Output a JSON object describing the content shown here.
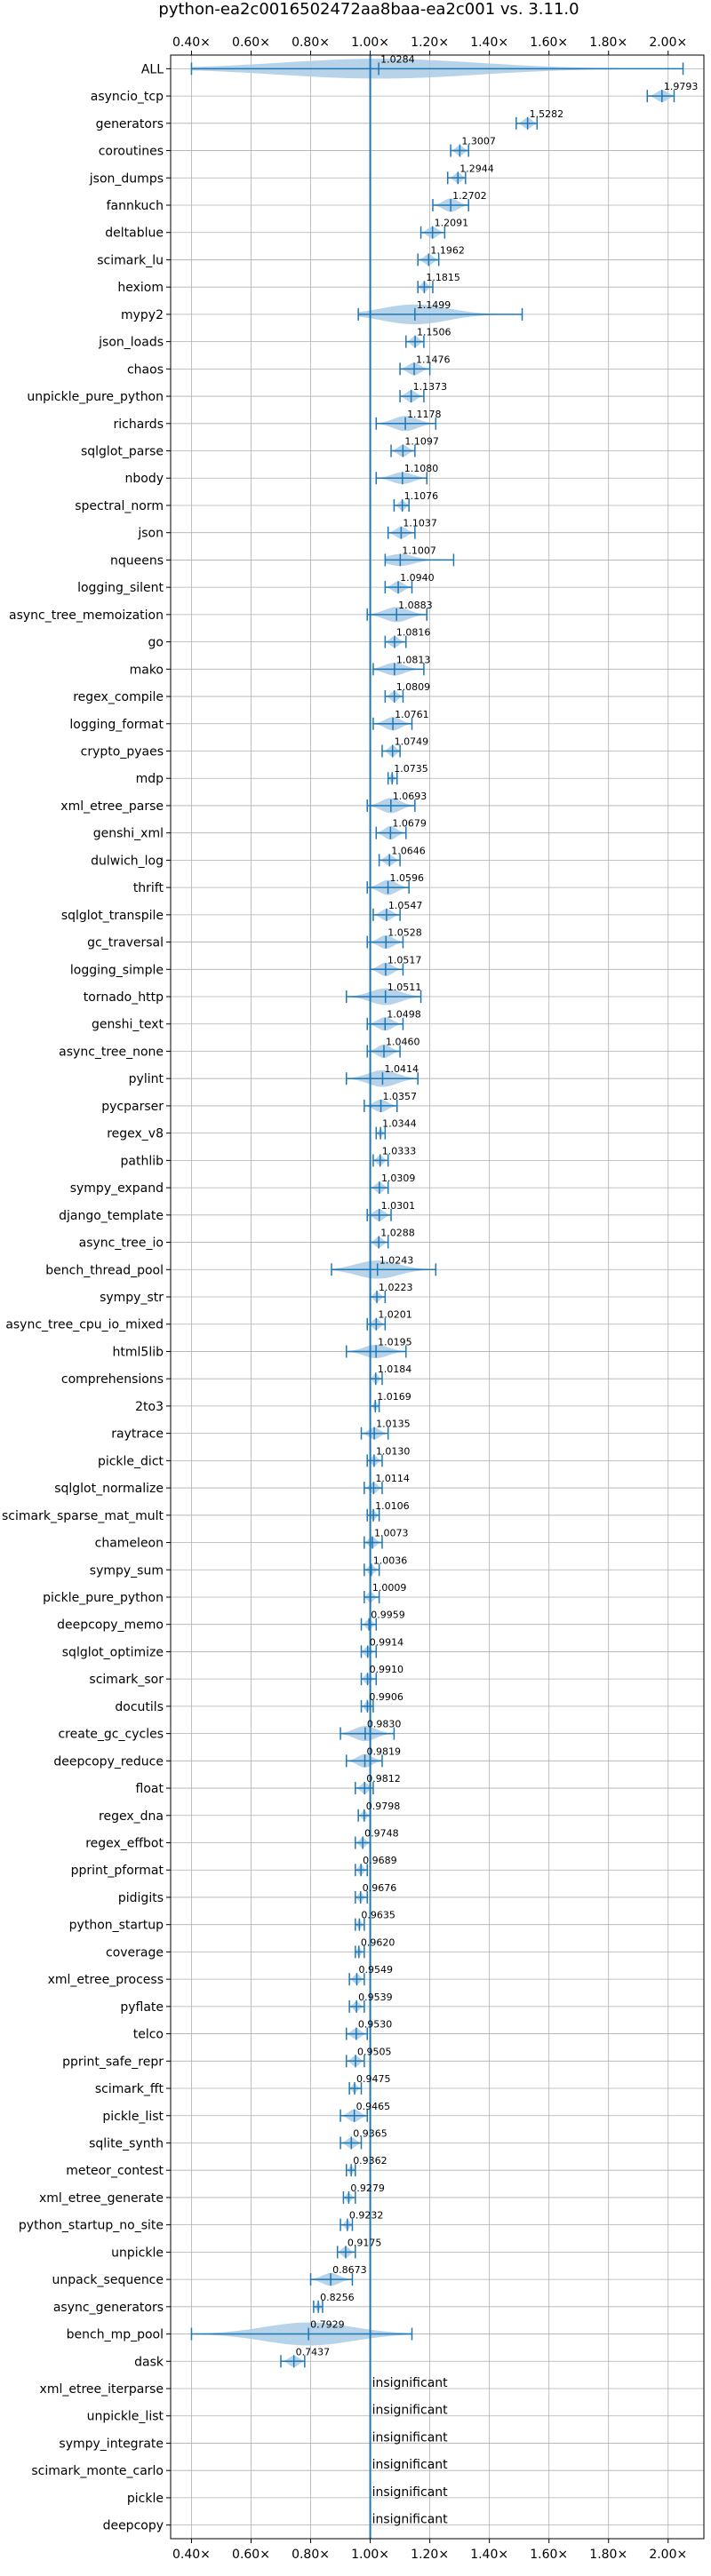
{
  "chart_data": {
    "type": "violin",
    "title": "python-ea2c0016502472aa8baa-ea2c001 vs. 3.11.0",
    "xlabel": "",
    "ylabel": "",
    "xlim": [
      0.33,
      2.12
    ],
    "xticks": [
      0.4,
      0.6,
      0.8,
      1.0,
      1.2,
      1.4,
      1.6,
      1.8,
      2.0
    ],
    "xtick_labels": [
      "0.40×",
      "0.60×",
      "0.80×",
      "1.00×",
      "1.20×",
      "1.40×",
      "1.60×",
      "1.80×",
      "2.00×"
    ],
    "reference_line": 1.0,
    "grid": true,
    "ticks_top_and_bottom": true,
    "colors": {
      "violin": "#aacbe6",
      "errorbar": "#1f77b4",
      "refline": "#1f77b4",
      "grid": "#b0b0b0"
    },
    "insignificant_text": "insignificant",
    "benchmarks": [
      {
        "name": "ALL",
        "mean": 1.0284,
        "min": 0.4,
        "max": 2.05,
        "label": "1.0284",
        "spread": 0.08
      },
      {
        "name": "asyncio_tcp",
        "mean": 1.9793,
        "min": 1.93,
        "max": 2.02,
        "label": "1.9793",
        "spread": 0.03
      },
      {
        "name": "generators",
        "mean": 1.5282,
        "min": 1.49,
        "max": 1.56,
        "label": "1.5282",
        "spread": 0.025
      },
      {
        "name": "coroutines",
        "mean": 1.3007,
        "min": 1.27,
        "max": 1.33,
        "label": "1.3007",
        "spread": 0.02
      },
      {
        "name": "json_dumps",
        "mean": 1.2944,
        "min": 1.26,
        "max": 1.32,
        "label": "1.2944",
        "spread": 0.02
      },
      {
        "name": "fannkuch",
        "mean": 1.2702,
        "min": 1.21,
        "max": 1.33,
        "label": "1.2702",
        "spread": 0.04
      },
      {
        "name": "deltablue",
        "mean": 1.2091,
        "min": 1.17,
        "max": 1.25,
        "label": "1.2091",
        "spread": 0.03
      },
      {
        "name": "scimark_lu",
        "mean": 1.1962,
        "min": 1.16,
        "max": 1.23,
        "label": "1.1962",
        "spread": 0.025
      },
      {
        "name": "hexiom",
        "mean": 1.1815,
        "min": 1.16,
        "max": 1.21,
        "label": "1.1815",
        "spread": 0.02
      },
      {
        "name": "mypy2",
        "mean": 1.1499,
        "min": 0.96,
        "max": 1.51,
        "label": "1.1499",
        "spread": 0.08
      },
      {
        "name": "json_loads",
        "mean": 1.1506,
        "min": 1.12,
        "max": 1.18,
        "label": "1.1506",
        "spread": 0.025
      },
      {
        "name": "chaos",
        "mean": 1.1476,
        "min": 1.1,
        "max": 1.2,
        "label": "1.1476",
        "spread": 0.035
      },
      {
        "name": "unpickle_pure_python",
        "mean": 1.1373,
        "min": 1.1,
        "max": 1.18,
        "label": "1.1373",
        "spread": 0.03
      },
      {
        "name": "richards",
        "mean": 1.1178,
        "min": 1.02,
        "max": 1.22,
        "label": "1.1178",
        "spread": 0.05
      },
      {
        "name": "sqlglot_parse",
        "mean": 1.1097,
        "min": 1.07,
        "max": 1.15,
        "label": "1.1097",
        "spread": 0.03
      },
      {
        "name": "nbody",
        "mean": 1.108,
        "min": 1.02,
        "max": 1.19,
        "label": "1.1080",
        "spread": 0.03
      },
      {
        "name": "spectral_norm",
        "mean": 1.1076,
        "min": 1.08,
        "max": 1.13,
        "label": "1.1076",
        "spread": 0.02
      },
      {
        "name": "json",
        "mean": 1.1037,
        "min": 1.06,
        "max": 1.15,
        "label": "1.1037",
        "spread": 0.03
      },
      {
        "name": "nqueens",
        "mean": 1.1007,
        "min": 1.05,
        "max": 1.28,
        "label": "1.1007",
        "spread": 0.03
      },
      {
        "name": "logging_silent",
        "mean": 1.094,
        "min": 1.05,
        "max": 1.14,
        "label": "1.0940",
        "spread": 0.03
      },
      {
        "name": "async_tree_memoization",
        "mean": 1.0883,
        "min": 0.99,
        "max": 1.19,
        "label": "1.0883",
        "spread": 0.05
      },
      {
        "name": "go",
        "mean": 1.0816,
        "min": 1.05,
        "max": 1.12,
        "label": "1.0816",
        "spread": 0.025
      },
      {
        "name": "mako",
        "mean": 1.0813,
        "min": 1.01,
        "max": 1.18,
        "label": "1.0813",
        "spread": 0.035
      },
      {
        "name": "regex_compile",
        "mean": 1.0809,
        "min": 1.05,
        "max": 1.11,
        "label": "1.0809",
        "spread": 0.025
      },
      {
        "name": "logging_format",
        "mean": 1.0761,
        "min": 1.01,
        "max": 1.14,
        "label": "1.0761",
        "spread": 0.04
      },
      {
        "name": "crypto_pyaes",
        "mean": 1.0749,
        "min": 1.04,
        "max": 1.1,
        "label": "1.0749",
        "spread": 0.025
      },
      {
        "name": "mdp",
        "mean": 1.0735,
        "min": 1.06,
        "max": 1.09,
        "label": "1.0735",
        "spread": 0.015
      },
      {
        "name": "xml_etree_parse",
        "mean": 1.0693,
        "min": 0.99,
        "max": 1.15,
        "label": "1.0693",
        "spread": 0.05
      },
      {
        "name": "genshi_xml",
        "mean": 1.0679,
        "min": 1.02,
        "max": 1.12,
        "label": "1.0679",
        "spread": 0.04
      },
      {
        "name": "dulwich_log",
        "mean": 1.0646,
        "min": 1.03,
        "max": 1.1,
        "label": "1.0646",
        "spread": 0.025
      },
      {
        "name": "thrift",
        "mean": 1.0596,
        "min": 0.99,
        "max": 1.13,
        "label": "1.0596",
        "spread": 0.05
      },
      {
        "name": "sqlglot_transpile",
        "mean": 1.0547,
        "min": 1.01,
        "max": 1.1,
        "label": "1.0547",
        "spread": 0.03
      },
      {
        "name": "gc_traversal",
        "mean": 1.0528,
        "min": 0.99,
        "max": 1.11,
        "label": "1.0528",
        "spread": 0.04
      },
      {
        "name": "logging_simple",
        "mean": 1.0517,
        "min": 1.0,
        "max": 1.11,
        "label": "1.0517",
        "spread": 0.04
      },
      {
        "name": "tornado_http",
        "mean": 1.0511,
        "min": 0.92,
        "max": 1.17,
        "label": "1.0511",
        "spread": 0.06
      },
      {
        "name": "genshi_text",
        "mean": 1.0498,
        "min": 0.99,
        "max": 1.11,
        "label": "1.0498",
        "spread": 0.04
      },
      {
        "name": "async_tree_none",
        "mean": 1.046,
        "min": 0.99,
        "max": 1.1,
        "label": "1.0460",
        "spread": 0.04
      },
      {
        "name": "pylint",
        "mean": 1.0414,
        "min": 0.92,
        "max": 1.16,
        "label": "1.0414",
        "spread": 0.06
      },
      {
        "name": "pycparser",
        "mean": 1.0357,
        "min": 0.98,
        "max": 1.09,
        "label": "1.0357",
        "spread": 0.035
      },
      {
        "name": "regex_v8",
        "mean": 1.0344,
        "min": 1.02,
        "max": 1.05,
        "label": "1.0344",
        "spread": 0.01
      },
      {
        "name": "pathlib",
        "mean": 1.0333,
        "min": 1.01,
        "max": 1.06,
        "label": "1.0333",
        "spread": 0.02
      },
      {
        "name": "sympy_expand",
        "mean": 1.0309,
        "min": 1.0,
        "max": 1.06,
        "label": "1.0309",
        "spread": 0.025
      },
      {
        "name": "django_template",
        "mean": 1.0301,
        "min": 0.99,
        "max": 1.07,
        "label": "1.0301",
        "spread": 0.03
      },
      {
        "name": "async_tree_io",
        "mean": 1.0288,
        "min": 1.0,
        "max": 1.06,
        "label": "1.0288",
        "spread": 0.025
      },
      {
        "name": "bench_thread_pool",
        "mean": 1.0243,
        "min": 0.87,
        "max": 1.22,
        "label": "1.0243",
        "spread": 0.07
      },
      {
        "name": "sympy_str",
        "mean": 1.0223,
        "min": 1.0,
        "max": 1.05,
        "label": "1.0223",
        "spread": 0.02
      },
      {
        "name": "async_tree_cpu_io_mixed",
        "mean": 1.0201,
        "min": 0.99,
        "max": 1.05,
        "label": "1.0201",
        "spread": 0.025
      },
      {
        "name": "html5lib",
        "mean": 1.0195,
        "min": 0.92,
        "max": 1.12,
        "label": "1.0195",
        "spread": 0.04
      },
      {
        "name": "comprehensions",
        "mean": 1.0184,
        "min": 1.0,
        "max": 1.04,
        "label": "1.0184",
        "spread": 0.02
      },
      {
        "name": "2to3",
        "mean": 1.0169,
        "min": 1.0,
        "max": 1.03,
        "label": "1.0169",
        "spread": 0.015
      },
      {
        "name": "raytrace",
        "mean": 1.0135,
        "min": 0.97,
        "max": 1.06,
        "label": "1.0135",
        "spread": 0.03
      },
      {
        "name": "pickle_dict",
        "mean": 1.013,
        "min": 0.99,
        "max": 1.04,
        "label": "1.0130",
        "spread": 0.02
      },
      {
        "name": "sqlglot_normalize",
        "mean": 1.0114,
        "min": 0.98,
        "max": 1.04,
        "label": "1.0114",
        "spread": 0.025
      },
      {
        "name": "scimark_sparse_mat_mult",
        "mean": 1.0106,
        "min": 0.99,
        "max": 1.03,
        "label": "1.0106",
        "spread": 0.02
      },
      {
        "name": "chameleon",
        "mean": 1.0073,
        "min": 0.98,
        "max": 1.04,
        "label": "1.0073",
        "spread": 0.025
      },
      {
        "name": "sympy_sum",
        "mean": 1.0036,
        "min": 0.98,
        "max": 1.03,
        "label": "1.0036",
        "spread": 0.02
      },
      {
        "name": "pickle_pure_python",
        "mean": 1.0009,
        "min": 0.98,
        "max": 1.03,
        "label": "1.0009",
        "spread": 0.02
      },
      {
        "name": "deepcopy_memo",
        "mean": 0.9959,
        "min": 0.97,
        "max": 1.02,
        "label": "0.9959",
        "spread": 0.02
      },
      {
        "name": "sqlglot_optimize",
        "mean": 0.9914,
        "min": 0.97,
        "max": 1.02,
        "label": "0.9914",
        "spread": 0.02
      },
      {
        "name": "scimark_sor",
        "mean": 0.991,
        "min": 0.97,
        "max": 1.02,
        "label": "0.9910",
        "spread": 0.02
      },
      {
        "name": "docutils",
        "mean": 0.9906,
        "min": 0.97,
        "max": 1.01,
        "label": "0.9906",
        "spread": 0.02
      },
      {
        "name": "create_gc_cycles",
        "mean": 0.983,
        "min": 0.9,
        "max": 1.08,
        "label": "0.9830",
        "spread": 0.05
      },
      {
        "name": "deepcopy_reduce",
        "mean": 0.9819,
        "min": 0.92,
        "max": 1.04,
        "label": "0.9819",
        "spread": 0.04
      },
      {
        "name": "float",
        "mean": 0.9812,
        "min": 0.95,
        "max": 1.01,
        "label": "0.9812",
        "spread": 0.025
      },
      {
        "name": "regex_dna",
        "mean": 0.9798,
        "min": 0.96,
        "max": 1.0,
        "label": "0.9798",
        "spread": 0.015
      },
      {
        "name": "regex_effbot",
        "mean": 0.9748,
        "min": 0.95,
        "max": 1.0,
        "label": "0.9748",
        "spread": 0.02
      },
      {
        "name": "pprint_pformat",
        "mean": 0.9689,
        "min": 0.95,
        "max": 0.99,
        "label": "0.9689",
        "spread": 0.02
      },
      {
        "name": "pidigits",
        "mean": 0.9676,
        "min": 0.95,
        "max": 0.99,
        "label": "0.9676",
        "spread": 0.015
      },
      {
        "name": "python_startup",
        "mean": 0.9635,
        "min": 0.95,
        "max": 0.98,
        "label": "0.9635",
        "spread": 0.015
      },
      {
        "name": "coverage",
        "mean": 0.962,
        "min": 0.95,
        "max": 0.98,
        "label": "0.9620",
        "spread": 0.015
      },
      {
        "name": "xml_etree_process",
        "mean": 0.9549,
        "min": 0.93,
        "max": 0.98,
        "label": "0.9549",
        "spread": 0.02
      },
      {
        "name": "pyflate",
        "mean": 0.9539,
        "min": 0.93,
        "max": 0.98,
        "label": "0.9539",
        "spread": 0.02
      },
      {
        "name": "telco",
        "mean": 0.953,
        "min": 0.92,
        "max": 0.99,
        "label": "0.9530",
        "spread": 0.025
      },
      {
        "name": "pprint_safe_repr",
        "mean": 0.9505,
        "min": 0.92,
        "max": 0.98,
        "label": "0.9505",
        "spread": 0.025
      },
      {
        "name": "scimark_fft",
        "mean": 0.9475,
        "min": 0.93,
        "max": 0.97,
        "label": "0.9475",
        "spread": 0.015
      },
      {
        "name": "pickle_list",
        "mean": 0.9465,
        "min": 0.9,
        "max": 0.99,
        "label": "0.9465",
        "spread": 0.035
      },
      {
        "name": "sqlite_synth",
        "mean": 0.9365,
        "min": 0.9,
        "max": 0.97,
        "label": "0.9365",
        "spread": 0.025
      },
      {
        "name": "meteor_contest",
        "mean": 0.9362,
        "min": 0.92,
        "max": 0.95,
        "label": "0.9362",
        "spread": 0.012
      },
      {
        "name": "xml_etree_generate",
        "mean": 0.9279,
        "min": 0.91,
        "max": 0.95,
        "label": "0.9279",
        "spread": 0.015
      },
      {
        "name": "python_startup_no_site",
        "mean": 0.9232,
        "min": 0.9,
        "max": 0.94,
        "label": "0.9232",
        "spread": 0.015
      },
      {
        "name": "unpickle",
        "mean": 0.9175,
        "min": 0.89,
        "max": 0.95,
        "label": "0.9175",
        "spread": 0.025
      },
      {
        "name": "unpack_sequence",
        "mean": 0.8673,
        "min": 0.8,
        "max": 0.94,
        "label": "0.8673",
        "spread": 0.035
      },
      {
        "name": "async_generators",
        "mean": 0.8256,
        "min": 0.81,
        "max": 0.84,
        "label": "0.8256",
        "spread": 0.012
      },
      {
        "name": "bench_mp_pool",
        "mean": 0.7929,
        "min": 0.4,
        "max": 1.14,
        "label": "0.7929",
        "spread": 0.1
      },
      {
        "name": "dask",
        "mean": 0.7437,
        "min": 0.7,
        "max": 0.78,
        "label": "0.7437",
        "spread": 0.025
      },
      {
        "name": "xml_etree_iterparse",
        "insignificant": true
      },
      {
        "name": "unpickle_list",
        "insignificant": true
      },
      {
        "name": "sympy_integrate",
        "insignificant": true
      },
      {
        "name": "scimark_monte_carlo",
        "insignificant": true
      },
      {
        "name": "pickle",
        "insignificant": true
      },
      {
        "name": "deepcopy",
        "insignificant": true
      }
    ]
  }
}
